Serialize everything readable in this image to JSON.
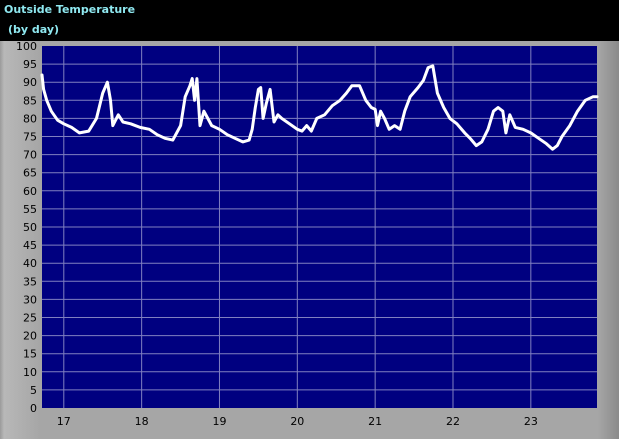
{
  "window": {
    "title": "Outside Temperature",
    "subtitle": "(by day)"
  },
  "colors": {
    "background": "#000000",
    "title_text": "#8fe8f0",
    "frame": "#a6a6a6",
    "plot_background": "#000080",
    "grid": "#8080c0",
    "line": "#ffffff"
  },
  "chart_data": {
    "type": "line",
    "title": "Outside Temperature",
    "subtitle": "(by day)",
    "xlabel": "",
    "ylabel": "",
    "xlim": [
      16.72,
      23.85
    ],
    "ylim": [
      0,
      100
    ],
    "x_ticks": [
      17,
      18,
      19,
      20,
      21,
      22,
      23
    ],
    "y_ticks": [
      0,
      5,
      10,
      15,
      20,
      25,
      30,
      35,
      40,
      45,
      50,
      55,
      60,
      65,
      70,
      75,
      80,
      85,
      90,
      95,
      100
    ],
    "grid": true,
    "legend": "none",
    "series": [
      {
        "points": [
          [
            16.72,
            92
          ],
          [
            16.74,
            88
          ],
          [
            16.78,
            85
          ],
          [
            16.84,
            82
          ],
          [
            16.92,
            79.5
          ],
          [
            17.0,
            78.5
          ],
          [
            17.1,
            77.5
          ],
          [
            17.2,
            76
          ],
          [
            17.32,
            76.5
          ],
          [
            17.42,
            80
          ],
          [
            17.5,
            87
          ],
          [
            17.56,
            90
          ],
          [
            17.6,
            85
          ],
          [
            17.63,
            78
          ],
          [
            17.7,
            81
          ],
          [
            17.76,
            79
          ],
          [
            17.86,
            78.5
          ],
          [
            17.98,
            77.5
          ],
          [
            18.1,
            77
          ],
          [
            18.2,
            75.5
          ],
          [
            18.3,
            74.5
          ],
          [
            18.4,
            74
          ],
          [
            18.5,
            78
          ],
          [
            18.56,
            86
          ],
          [
            18.62,
            89
          ],
          [
            18.65,
            91
          ],
          [
            18.68,
            85
          ],
          [
            18.71,
            91
          ],
          [
            18.75,
            78
          ],
          [
            18.8,
            82
          ],
          [
            18.85,
            80
          ],
          [
            18.9,
            78
          ],
          [
            19.0,
            77
          ],
          [
            19.1,
            75.5
          ],
          [
            19.2,
            74.5
          ],
          [
            19.3,
            73.5
          ],
          [
            19.38,
            74
          ],
          [
            19.42,
            77
          ],
          [
            19.46,
            83
          ],
          [
            19.5,
            88
          ],
          [
            19.53,
            88.5
          ],
          [
            19.56,
            80
          ],
          [
            19.6,
            84
          ],
          [
            19.65,
            88
          ],
          [
            19.7,
            79
          ],
          [
            19.75,
            81
          ],
          [
            19.8,
            80
          ],
          [
            19.9,
            78.5
          ],
          [
            20.0,
            77
          ],
          [
            20.06,
            76.5
          ],
          [
            20.12,
            78
          ],
          [
            20.18,
            76.5
          ],
          [
            20.25,
            80
          ],
          [
            20.35,
            81
          ],
          [
            20.45,
            83.5
          ],
          [
            20.55,
            85
          ],
          [
            20.63,
            87
          ],
          [
            20.7,
            89
          ],
          [
            20.8,
            89
          ],
          [
            20.88,
            85
          ],
          [
            20.95,
            83
          ],
          [
            21.0,
            82.5
          ],
          [
            21.03,
            78
          ],
          [
            21.07,
            82
          ],
          [
            21.12,
            80
          ],
          [
            21.18,
            77
          ],
          [
            21.25,
            78
          ],
          [
            21.32,
            77
          ],
          [
            21.38,
            82
          ],
          [
            21.45,
            86
          ],
          [
            21.55,
            88.5
          ],
          [
            21.62,
            90.5
          ],
          [
            21.68,
            94
          ],
          [
            21.74,
            94.5
          ],
          [
            21.8,
            87
          ],
          [
            21.88,
            83
          ],
          [
            21.96,
            80
          ],
          [
            22.05,
            78.5
          ],
          [
            22.15,
            76
          ],
          [
            22.22,
            74.5
          ],
          [
            22.3,
            72.5
          ],
          [
            22.37,
            73.5
          ],
          [
            22.45,
            77
          ],
          [
            22.52,
            82
          ],
          [
            22.58,
            83
          ],
          [
            22.64,
            82
          ],
          [
            22.68,
            76
          ],
          [
            22.73,
            81
          ],
          [
            22.8,
            77.5
          ],
          [
            22.9,
            77
          ],
          [
            23.0,
            76
          ],
          [
            23.1,
            74.5
          ],
          [
            23.2,
            73
          ],
          [
            23.28,
            71.5
          ],
          [
            23.34,
            72.5
          ],
          [
            23.4,
            75
          ],
          [
            23.5,
            78
          ],
          [
            23.6,
            82
          ],
          [
            23.7,
            85
          ],
          [
            23.8,
            86
          ],
          [
            23.85,
            86
          ]
        ]
      }
    ]
  }
}
